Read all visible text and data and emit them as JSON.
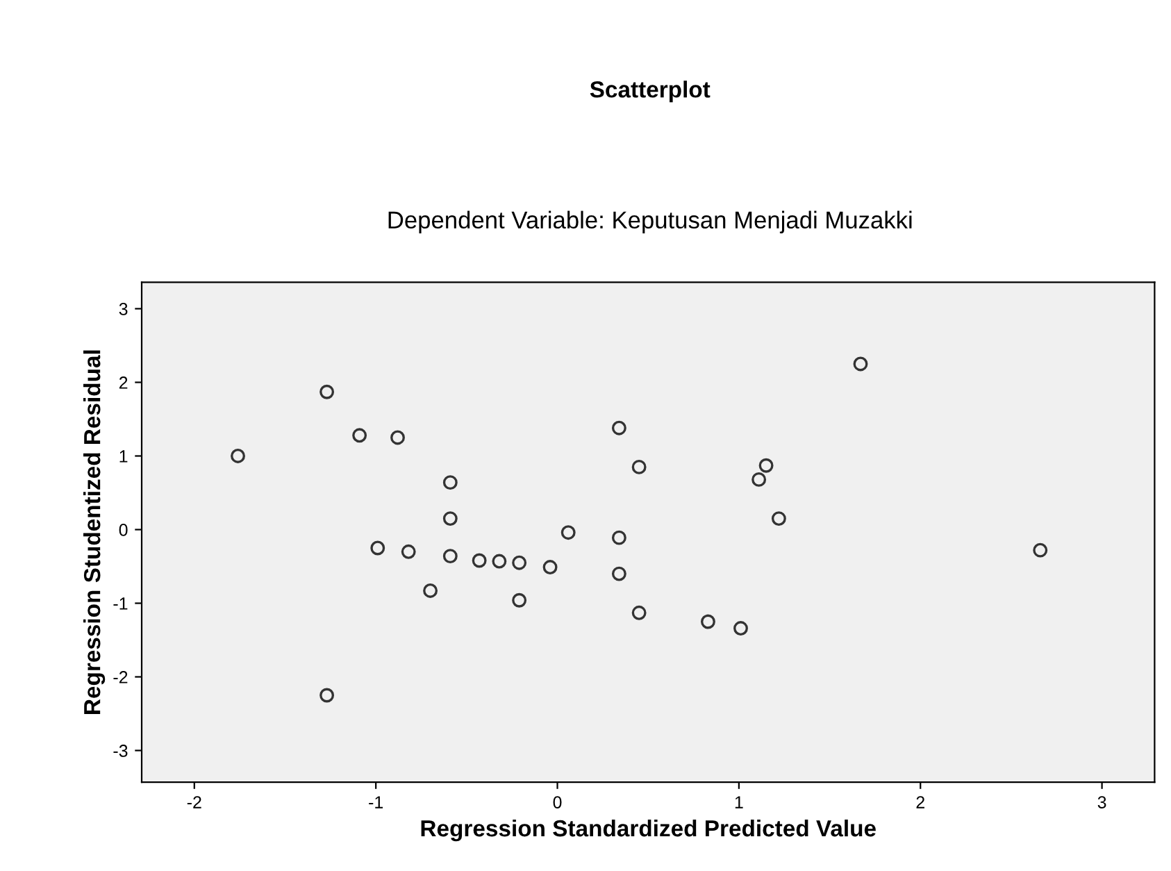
{
  "chart_data": {
    "type": "scatter",
    "title": "Scatterplot",
    "subtitle": "Dependent Variable: Keputusan Menjadi Muzakki",
    "xlabel": "Regression Standardized Predicted Value",
    "ylabel": "Regression Studentized Residual",
    "x": [
      -1.76,
      -1.27,
      -1.09,
      -0.88,
      -0.59,
      -0.59,
      -0.99,
      -0.82,
      -0.59,
      -0.7,
      -0.43,
      -0.32,
      -0.21,
      -0.21,
      -0.04,
      0.06,
      0.34,
      0.34,
      0.34,
      0.45,
      0.45,
      0.83,
      1.01,
      1.15,
      1.11,
      1.22,
      1.67,
      2.66,
      -1.27
    ],
    "series": [
      {
        "color": "#333333",
        "values": [
          1.0,
          1.87,
          1.28,
          1.25,
          0.64,
          0.15,
          -0.25,
          -0.3,
          -0.36,
          -0.83,
          -0.42,
          -0.43,
          -0.45,
          -0.96,
          -0.51,
          -0.04,
          1.38,
          -0.11,
          -0.6,
          0.85,
          -1.13,
          -1.25,
          -1.34,
          0.87,
          0.68,
          0.15,
          2.25,
          -0.28,
          -2.25
        ]
      }
    ],
    "xlim": [
      -2.29,
      3.29
    ],
    "ylim": [
      -3.43,
      3.36
    ],
    "xticks": [
      -2,
      -1,
      0,
      1,
      2,
      3
    ],
    "yticks": [
      -3,
      -2,
      -1,
      0,
      1,
      2,
      3
    ],
    "marker": "circle",
    "grid": false,
    "legend": false
  }
}
